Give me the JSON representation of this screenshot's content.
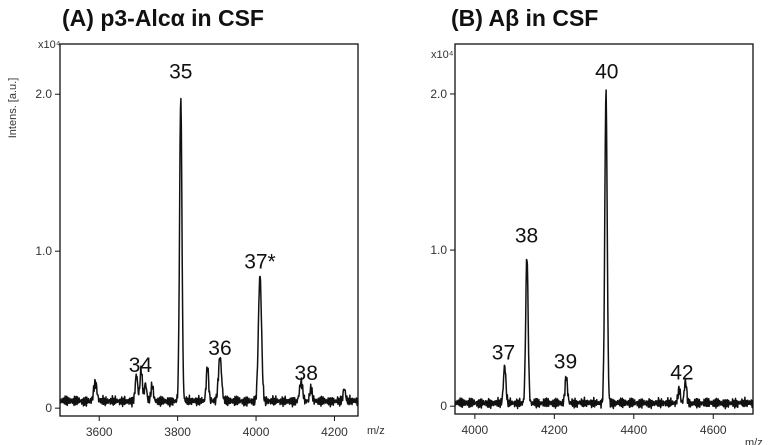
{
  "chart_data": [
    {
      "type": "line",
      "title": "(A) p3-Alcα in CSF",
      "ylabel": "Intens. [a.u.]",
      "y_scale_label": "x10⁴",
      "xlabel": "m/z",
      "xlim": [
        3500,
        4260
      ],
      "ylim": [
        -0.05,
        2.32
      ],
      "x_ticks": [
        3600,
        3800,
        4000,
        4200
      ],
      "y_ticks": [
        {
          "value": 0,
          "label": "0"
        },
        {
          "value": 1.0,
          "label": "1.0"
        },
        {
          "value": 2.0,
          "label": "2.0"
        }
      ],
      "baseline": 0.045,
      "peaks": [
        {
          "x": 3590,
          "y": 0.12,
          "w": 4
        },
        {
          "x": 3695,
          "y": 0.17,
          "w": 3
        },
        {
          "x": 3707,
          "y": 0.2,
          "w": 3
        },
        {
          "x": 3718,
          "y": 0.11,
          "w": 3
        },
        {
          "x": 3735,
          "y": 0.1,
          "w": 3
        },
        {
          "x": 3808,
          "y": 1.95,
          "w": 3
        },
        {
          "x": 3876,
          "y": 0.22,
          "w": 3
        },
        {
          "x": 3908,
          "y": 0.28,
          "w": 4
        },
        {
          "x": 4010,
          "y": 0.8,
          "w": 4
        },
        {
          "x": 4115,
          "y": 0.12,
          "w": 4
        },
        {
          "x": 4140,
          "y": 0.08,
          "w": 3
        },
        {
          "x": 4225,
          "y": 0.08,
          "w": 3
        }
      ],
      "annotations": [
        {
          "text": "34",
          "x": 3705,
          "y": 0.23
        },
        {
          "text": "35",
          "x": 3808,
          "y": 2.1
        },
        {
          "text": "36",
          "x": 3908,
          "y": 0.34
        },
        {
          "text": "37*",
          "x": 4010,
          "y": 0.89
        },
        {
          "text": "38",
          "x": 4128,
          "y": 0.18
        }
      ]
    },
    {
      "type": "line",
      "title": "(B) Aβ in CSF",
      "ylabel": "",
      "y_scale_label": "x10⁴",
      "xlabel": "m/z",
      "xlim": [
        3950,
        4700
      ],
      "ylim": [
        -0.05,
        2.32
      ],
      "x_ticks": [
        4000,
        4200,
        4400,
        4600
      ],
      "y_ticks": [
        {
          "value": 0,
          "label": "0"
        },
        {
          "value": 1.0,
          "label": "1.0"
        },
        {
          "value": 2.0,
          "label": "2.0"
        }
      ],
      "baseline": 0.02,
      "peaks": [
        {
          "x": 4075,
          "y": 0.24,
          "w": 3
        },
        {
          "x": 4131,
          "y": 0.95,
          "w": 3
        },
        {
          "x": 4230,
          "y": 0.17,
          "w": 3
        },
        {
          "x": 4330,
          "y": 2.0,
          "w": 3
        },
        {
          "x": 4514,
          "y": 0.09,
          "w": 3
        },
        {
          "x": 4530,
          "y": 0.14,
          "w": 3
        }
      ],
      "annotations": [
        {
          "text": "37",
          "x": 4072,
          "y": 0.3
        },
        {
          "text": "38",
          "x": 4130,
          "y": 1.05
        },
        {
          "text": "39",
          "x": 4228,
          "y": 0.24
        },
        {
          "text": "40",
          "x": 4332,
          "y": 2.1
        },
        {
          "text": "42",
          "x": 4521,
          "y": 0.17
        }
      ]
    }
  ]
}
